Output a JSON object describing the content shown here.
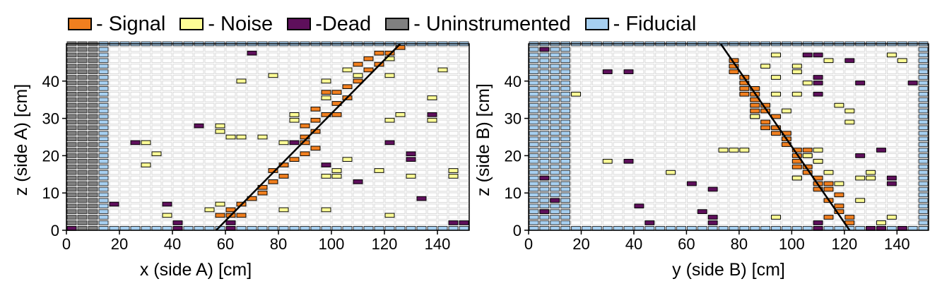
{
  "legend": {
    "items": [
      {
        "label": "- Signal",
        "color": "#f07f1f"
      },
      {
        "label": "- Noise",
        "color": "#fdfd96"
      },
      {
        "label": "-Dead",
        "color": "#5e0f5b"
      },
      {
        "label": "- Uninstrumented",
        "color": "#808080"
      },
      {
        "label": "- Fiducial",
        "color": "#a6cff0"
      }
    ]
  },
  "colors": {
    "signal": "#f07f1f",
    "noise": "#fdfd96",
    "dead": "#5e0f5b",
    "uninstrumented": "#808080",
    "fiducial": "#a6cff0",
    "empty_bar_outline": "#d8d8d8",
    "track_line": "#000000"
  },
  "chart_data": [
    {
      "type": "scatter",
      "panel": "side-A",
      "xlabel": "x (side A) [cm]",
      "ylabel": "z (side A) [cm]",
      "xlim": [
        0,
        152
      ],
      "ylim": [
        0,
        50
      ],
      "xticks": [
        0,
        20,
        40,
        60,
        80,
        100,
        120,
        140
      ],
      "yticks": [
        0,
        10,
        20,
        30,
        40
      ],
      "bar_width_cm": 4,
      "layer_pitch_cm": 1.5,
      "fit_line": {
        "x1": 56.5,
        "z1": 0,
        "x2": 126,
        "z2": 50
      },
      "uninstrumented_x_range": [
        0,
        12
      ],
      "fiducial_x_range": [
        12,
        16
      ],
      "series": [
        {
          "name": "Signal",
          "hits": [
            [
              58,
              4
            ],
            [
              62,
              4
            ],
            [
              66,
              4
            ],
            [
              62,
              5.5
            ],
            [
              66,
              7
            ],
            [
              70,
              8.5
            ],
            [
              74,
              10
            ],
            [
              74,
              11.5
            ],
            [
              78,
              13
            ],
            [
              82,
              14.5
            ],
            [
              78,
              16
            ],
            [
              82,
              17.5
            ],
            [
              86,
              19
            ],
            [
              90,
              20.5
            ],
            [
              94,
              22
            ],
            [
              90,
              23.5
            ],
            [
              90,
              25
            ],
            [
              94,
              26.5
            ],
            [
              90,
              28
            ],
            [
              94,
              29.5
            ],
            [
              98,
              31
            ],
            [
              102,
              31
            ],
            [
              94,
              32.5
            ],
            [
              102,
              34
            ],
            [
              106,
              35.5
            ],
            [
              98,
              37
            ],
            [
              102,
              37
            ],
            [
              106,
              38.5
            ],
            [
              110,
              40
            ],
            [
              110,
              41.5
            ],
            [
              114,
              43
            ],
            [
              110,
              44.5
            ],
            [
              118,
              44.5
            ],
            [
              114,
              46
            ],
            [
              118,
              47.5
            ],
            [
              122,
              47.5
            ],
            [
              126,
              49
            ]
          ]
        },
        {
          "name": "Noise",
          "hits": [
            [
              38,
              4
            ],
            [
              122,
              4
            ],
            [
              54,
              5.5
            ],
            [
              82,
              5.5
            ],
            [
              98,
              5.5
            ],
            [
              58,
              7
            ],
            [
              98,
              14.5
            ],
            [
              102,
              14.5
            ],
            [
              130,
              14.5
            ],
            [
              146,
              14.5
            ],
            [
              102,
              16
            ],
            [
              118,
              16
            ],
            [
              146,
              16
            ],
            [
              30,
              17.5
            ],
            [
              106,
              19
            ],
            [
              34,
              20.5
            ],
            [
              30,
              23.5
            ],
            [
              82,
              23.5
            ],
            [
              62,
              25
            ],
            [
              66,
              25
            ],
            [
              74,
              25
            ],
            [
              58,
              26.5
            ],
            [
              58,
              28
            ],
            [
              86,
              29.5
            ],
            [
              122,
              29.5
            ],
            [
              138,
              29.5
            ],
            [
              86,
              31
            ],
            [
              126,
              31
            ],
            [
              98,
              35.5
            ],
            [
              138,
              35.5
            ],
            [
              66,
              40
            ],
            [
              98,
              40
            ],
            [
              78,
              41.5
            ],
            [
              110,
              41.5
            ],
            [
              122,
              41.5
            ],
            [
              106,
              43
            ],
            [
              142,
              43
            ],
            [
              122,
              46
            ]
          ]
        },
        {
          "name": "Dead",
          "hits": [
            [
              2,
              0.5
            ],
            [
              42,
              0.5
            ],
            [
              62,
              0.5
            ],
            [
              42,
              2
            ],
            [
              62,
              2
            ],
            [
              146,
              2
            ],
            [
              150,
              2
            ],
            [
              18,
              7
            ],
            [
              38,
              7
            ],
            [
              134,
              8.5
            ],
            [
              110,
              13
            ],
            [
              98,
              17.5
            ],
            [
              130,
              19
            ],
            [
              130,
              20.5
            ],
            [
              26,
              23.5
            ],
            [
              86,
              23.5
            ],
            [
              122,
              23.5
            ],
            [
              50,
              28
            ],
            [
              138,
              31
            ],
            [
              70,
              47.5
            ]
          ]
        }
      ]
    },
    {
      "type": "scatter",
      "panel": "side-B",
      "xlabel": "y (side B) [cm]",
      "ylabel": "z (side B) [cm]",
      "xlim": [
        0,
        152
      ],
      "ylim": [
        0,
        50
      ],
      "xticks": [
        0,
        20,
        40,
        60,
        80,
        100,
        120,
        140
      ],
      "yticks": [
        0,
        10,
        20,
        30,
        40
      ],
      "bar_width_cm": 4,
      "layer_pitch_cm": 1.5,
      "fit_line": {
        "x1": 73,
        "z1": 50,
        "x2": 122,
        "z2": 0
      },
      "fiducial_x_ranges": [
        [
          0,
          16
        ],
        [
          148,
          152
        ]
      ],
      "series": [
        {
          "name": "Signal",
          "hits": [
            [
              122,
              2
            ],
            [
              114,
              3.5
            ],
            [
              122,
              3.5
            ],
            [
              118,
              5
            ],
            [
              118,
              6.5
            ],
            [
              114,
              8
            ],
            [
              118,
              9.5
            ],
            [
              110,
              11
            ],
            [
              114,
              11
            ],
            [
              110,
              12.5
            ],
            [
              114,
              12.5
            ],
            [
              102,
              14
            ],
            [
              110,
              14
            ],
            [
              106,
              15.5
            ],
            [
              102,
              17
            ],
            [
              106,
              17
            ],
            [
              102,
              18.5
            ],
            [
              110,
              18.5
            ],
            [
              102,
              20
            ],
            [
              106,
              20
            ],
            [
              102,
              21.5
            ],
            [
              106,
              21.5
            ],
            [
              98,
              23
            ],
            [
              98,
              24.5
            ],
            [
              94,
              26
            ],
            [
              98,
              26
            ],
            [
              90,
              27.5
            ],
            [
              94,
              27.5
            ],
            [
              90,
              29
            ],
            [
              86,
              30.5
            ],
            [
              94,
              30.5
            ],
            [
              86,
              32
            ],
            [
              90,
              32
            ],
            [
              86,
              33.5
            ],
            [
              90,
              33.5
            ],
            [
              86,
              35
            ],
            [
              82,
              36.5
            ],
            [
              86,
              36.5
            ],
            [
              82,
              38
            ],
            [
              86,
              38
            ],
            [
              82,
              39.5
            ],
            [
              82,
              41
            ],
            [
              78,
              42.5
            ],
            [
              78,
              44
            ],
            [
              78,
              45.5
            ]
          ]
        },
        {
          "name": "Noise",
          "hits": [
            [
              134,
              2
            ],
            [
              94,
              3.5
            ],
            [
              138,
              3.5
            ],
            [
              126,
              8
            ],
            [
              118,
              12.5
            ],
            [
              102,
              14
            ],
            [
              126,
              14
            ],
            [
              130,
              14
            ],
            [
              114,
              15.5
            ],
            [
              54,
              15.5
            ],
            [
              130,
              15.5
            ],
            [
              30,
              18.5
            ],
            [
              110,
              18.5
            ],
            [
              106,
              20
            ],
            [
              74,
              21.5
            ],
            [
              78,
              21.5
            ],
            [
              82,
              21.5
            ],
            [
              110,
              21.5
            ],
            [
              122,
              29
            ],
            [
              86,
              30.5
            ],
            [
              122,
              32
            ],
            [
              98,
              32
            ],
            [
              118,
              33.5
            ],
            [
              18,
              36.5
            ],
            [
              102,
              36.5
            ],
            [
              94,
              36.5
            ],
            [
              106,
              39.5
            ],
            [
              94,
              41
            ],
            [
              102,
              42.5
            ],
            [
              90,
              44
            ],
            [
              102,
              44
            ],
            [
              114,
              45.5
            ],
            [
              142,
              45.5
            ],
            [
              94,
              47
            ],
            [
              138,
              47
            ]
          ]
        },
        {
          "name": "Dead",
          "hits": [
            [
              110,
              0.5
            ],
            [
              130,
              0.5
            ],
            [
              134,
              0.5
            ],
            [
              142,
              0.5
            ],
            [
              46,
              2
            ],
            [
              70,
              2
            ],
            [
              110,
              2
            ],
            [
              70,
              3.5
            ],
            [
              6,
              5
            ],
            [
              66,
              5
            ],
            [
              42,
              6.5
            ],
            [
              10,
              8
            ],
            [
              138,
              12.5
            ],
            [
              70,
              11
            ],
            [
              6,
              14
            ],
            [
              62,
              12.5
            ],
            [
              138,
              14
            ],
            [
              38,
              18.5
            ],
            [
              126,
              20
            ],
            [
              134,
              21.5
            ],
            [
              110,
              36.5
            ],
            [
              110,
              39.5
            ],
            [
              126,
              39.5
            ],
            [
              146,
              39.5
            ],
            [
              30,
              42.5
            ],
            [
              38,
              42.5
            ],
            [
              110,
              41
            ],
            [
              122,
              45.5
            ],
            [
              106,
              47
            ],
            [
              110,
              47
            ],
            [
              6,
              48.5
            ]
          ]
        }
      ]
    }
  ]
}
